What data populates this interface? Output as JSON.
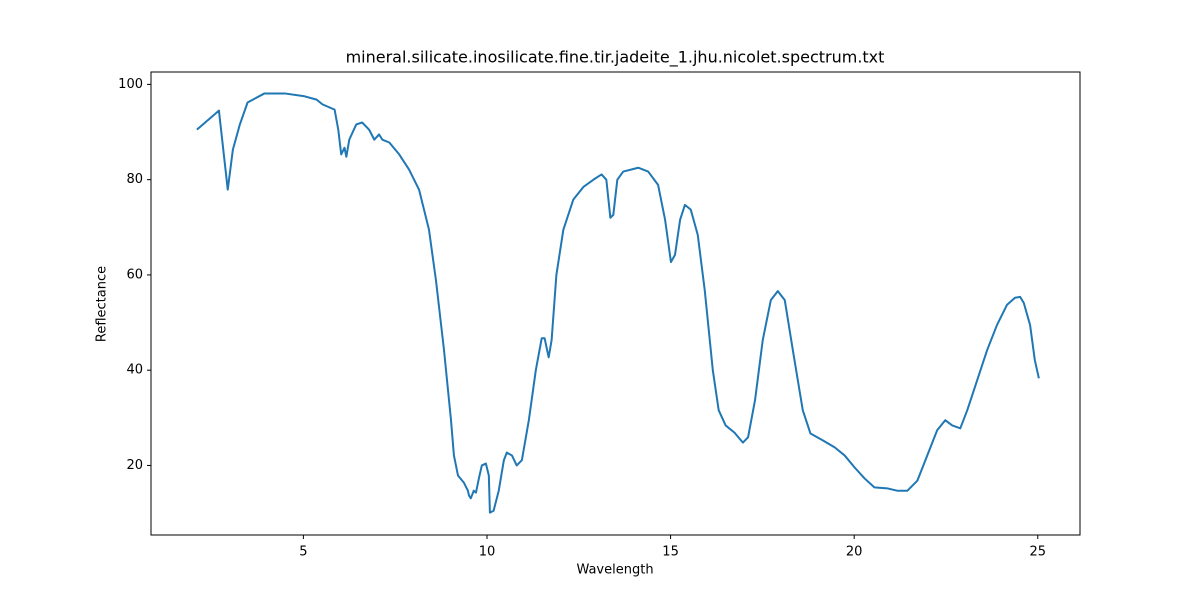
{
  "chart_data": {
    "type": "line",
    "title": "mineral.silicate.inosilicate.fine.tir.jadeite_1.jhu.nicolet.spectrum.txt",
    "xlabel": "Wavelength",
    "ylabel": "Reflectance",
    "color": "#1f77b4",
    "x": [
      2.1,
      2.7,
      2.94,
      3.08,
      3.27,
      3.48,
      3.94,
      4.49,
      5.03,
      5.36,
      5.52,
      5.85,
      5.95,
      6.03,
      6.12,
      6.17,
      6.25,
      6.44,
      6.6,
      6.79,
      6.93,
      7.06,
      7.15,
      7.34,
      7.61,
      7.88,
      8.15,
      8.42,
      8.61,
      8.83,
      9.02,
      9.1,
      9.21,
      9.37,
      9.48,
      9.51,
      9.56,
      9.64,
      9.7,
      9.78,
      9.86,
      9.97,
      10.05,
      10.08,
      10.18,
      10.32,
      10.46,
      10.54,
      10.68,
      10.81,
      10.95,
      11.14,
      11.33,
      11.49,
      11.57,
      11.68,
      11.76,
      11.89,
      12.08,
      12.35,
      12.63,
      12.9,
      13.12,
      13.25,
      13.36,
      13.44,
      13.55,
      13.71,
      14.12,
      14.39,
      14.66,
      14.85,
      15.01,
      15.12,
      15.26,
      15.39,
      15.55,
      15.74,
      15.93,
      16.15,
      16.31,
      16.5,
      16.74,
      16.97,
      17.11,
      17.3,
      17.51,
      17.73,
      17.92,
      18.11,
      18.33,
      18.6,
      18.81,
      19.14,
      19.47,
      19.74,
      20.01,
      20.28,
      20.55,
      20.9,
      21.17,
      21.45,
      21.72,
      21.99,
      22.26,
      22.48,
      22.67,
      22.89,
      23.08,
      23.35,
      23.62,
      23.89,
      24.16,
      24.38,
      24.52,
      24.62,
      24.79,
      24.92,
      25.03
    ],
    "values": [
      90.5,
      94.5,
      77.9,
      86.3,
      91.6,
      96.2,
      98.1,
      98.1,
      97.5,
      96.8,
      95.8,
      94.7,
      90.5,
      85.3,
      86.7,
      84.8,
      88.4,
      91.6,
      92.0,
      90.5,
      88.4,
      89.5,
      88.4,
      87.8,
      85.3,
      82.1,
      77.9,
      69.5,
      58.9,
      44.2,
      29.5,
      22.1,
      17.9,
      16.4,
      14.7,
      13.7,
      13.1,
      14.7,
      14.3,
      17.3,
      20.0,
      20.4,
      17.9,
      10.1,
      10.5,
      14.7,
      21.1,
      22.7,
      22.1,
      20.0,
      21.1,
      29.5,
      40.0,
      46.7,
      46.7,
      42.7,
      46.3,
      60.0,
      69.5,
      75.8,
      78.5,
      80.0,
      81.1,
      80.0,
      72.0,
      72.6,
      80.0,
      81.7,
      82.5,
      81.7,
      78.9,
      71.6,
      62.7,
      64.2,
      71.6,
      74.7,
      73.7,
      68.4,
      56.8,
      40.0,
      31.6,
      28.4,
      26.9,
      24.8,
      25.9,
      33.7,
      46.3,
      54.7,
      56.6,
      54.7,
      44.2,
      31.6,
      26.7,
      25.3,
      23.8,
      22.1,
      19.6,
      17.3,
      15.4,
      15.2,
      14.7,
      14.7,
      16.8,
      22.1,
      27.4,
      29.5,
      28.4,
      27.8,
      31.6,
      37.9,
      44.2,
      49.5,
      53.7,
      55.2,
      55.4,
      54.1,
      49.5,
      42.1,
      38.3
    ],
    "xlim": [
      0.85,
      26.15
    ],
    "ylim": [
      5.4,
      102.6
    ],
    "xticks": [
      5,
      10,
      15,
      20,
      25
    ],
    "yticks": [
      20,
      40,
      60,
      80,
      100
    ]
  }
}
